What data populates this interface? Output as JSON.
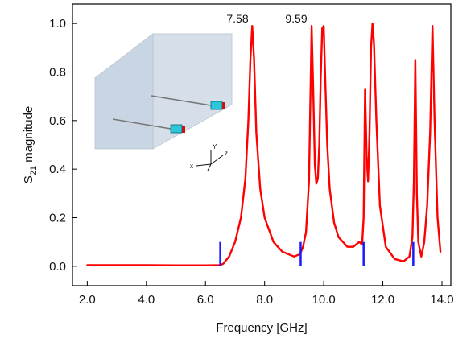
{
  "colors": {
    "curve": "#ff0000",
    "markers": "#1a1aff",
    "box": "#c9d5e2"
  },
  "chart_data": {
    "type": "line",
    "xlabel": "Frequency [GHz]",
    "ylabel": {
      "main": "S",
      "sub": "21",
      "rest": " magnitude"
    },
    "xlim": [
      1.5,
      14.3
    ],
    "ylim": [
      -0.08,
      1.08
    ],
    "xticks": [
      2.0,
      4.0,
      6.0,
      8.0,
      10.0,
      12.0,
      14.0
    ],
    "xtick_labels": [
      "2.0",
      "4.0",
      "6.0",
      "8.0",
      "10.0",
      "12.0",
      "14.0"
    ],
    "yticks": [
      0.0,
      0.2,
      0.4,
      0.6,
      0.8,
      1.0
    ],
    "ytick_labels": [
      "0.0",
      "0.2",
      "0.4",
      "0.6",
      "0.8",
      "1.0"
    ],
    "grid": false,
    "series": [
      {
        "x": [
          2.0,
          3.0,
          4.0,
          5.0,
          6.0,
          6.5,
          6.6,
          6.8,
          7.0,
          7.2,
          7.35,
          7.45,
          7.52,
          7.58,
          7.64,
          7.72,
          7.85,
          8.0,
          8.3,
          8.6,
          9.0,
          9.2,
          9.3,
          9.4,
          9.5,
          9.55,
          9.59,
          9.64,
          9.7,
          9.75,
          9.8,
          9.85,
          9.9,
          9.95,
          10.0,
          10.05,
          10.12,
          10.2,
          10.35,
          10.5,
          10.8,
          11.0,
          11.2,
          11.3,
          11.35,
          11.4,
          11.45,
          11.5,
          11.55,
          11.6,
          11.65,
          11.7,
          11.78,
          11.9,
          12.1,
          12.4,
          12.7,
          12.9,
          13.0,
          13.05,
          13.1,
          13.15,
          13.2,
          13.3,
          13.4,
          13.5,
          13.6,
          13.68,
          13.75,
          13.85,
          13.95
        ],
        "y": [
          0.005,
          0.005,
          0.005,
          0.004,
          0.004,
          0.005,
          0.01,
          0.04,
          0.1,
          0.2,
          0.36,
          0.6,
          0.85,
          0.99,
          0.86,
          0.55,
          0.32,
          0.2,
          0.1,
          0.06,
          0.04,
          0.05,
          0.08,
          0.14,
          0.35,
          0.7,
          0.99,
          0.75,
          0.42,
          0.34,
          0.36,
          0.5,
          0.78,
          0.98,
          0.99,
          0.78,
          0.5,
          0.32,
          0.18,
          0.12,
          0.08,
          0.08,
          0.1,
          0.09,
          0.2,
          0.73,
          0.45,
          0.35,
          0.55,
          0.9,
          1.0,
          0.92,
          0.6,
          0.25,
          0.08,
          0.03,
          0.02,
          0.04,
          0.12,
          0.35,
          0.85,
          0.3,
          0.1,
          0.04,
          0.1,
          0.25,
          0.55,
          0.99,
          0.6,
          0.2,
          0.06
        ]
      }
    ],
    "vertical_markers": [
      {
        "x": 6.5,
        "y0": 0.0,
        "y1": 0.1
      },
      {
        "x": 9.22,
        "y0": 0.0,
        "y1": 0.1
      },
      {
        "x": 11.35,
        "y0": 0.0,
        "y1": 0.1
      },
      {
        "x": 13.03,
        "y0": 0.0,
        "y1": 0.1
      }
    ],
    "annotations": [
      {
        "text": "7.58",
        "x": 7.58,
        "y": 1.01
      },
      {
        "text": "9.59",
        "x": 9.59,
        "y": 1.01
      }
    ]
  },
  "inset": {
    "axis_labels": {
      "x": "x",
      "y": "Y",
      "z": "z"
    }
  }
}
